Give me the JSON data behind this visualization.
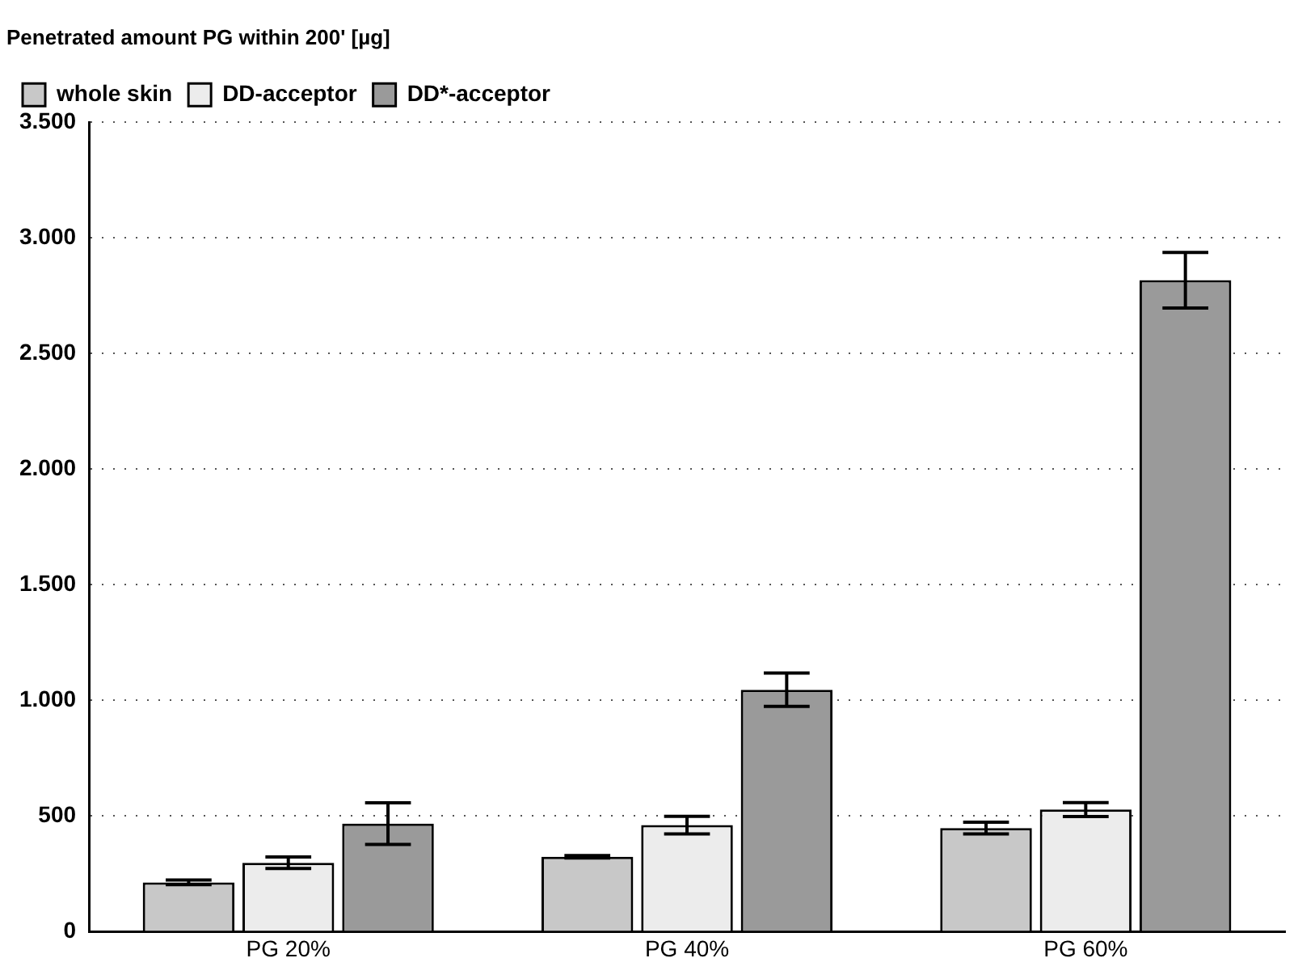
{
  "chart_data": {
    "type": "bar",
    "ylabel": "Penetrated amount PG within 200' [µg]",
    "categories": [
      "PG 20%",
      "PG 40%",
      "PG 60%"
    ],
    "series": [
      {
        "name": "whole skin",
        "color": "#c8c8c8",
        "values": [
          213,
          324,
          448
        ],
        "errors": [
          10,
          5,
          25
        ]
      },
      {
        "name": "DD-acceptor",
        "color": "#ececec",
        "values": [
          298,
          461,
          528
        ],
        "errors": [
          25,
          38,
          30
        ]
      },
      {
        "name": "DD*-acceptor",
        "color": "#9a9a9a",
        "values": [
          467,
          1046,
          2817
        ],
        "errors": [
          90,
          72,
          120
        ]
      }
    ],
    "ylim": [
      0,
      3500
    ],
    "yticks": [
      0,
      500,
      {
        "value": 1000,
        "label": "1.000"
      },
      {
        "value": 1500,
        "label": "1.500"
      },
      {
        "value": 2000,
        "label": "2.000"
      },
      {
        "value": 2500,
        "label": "2.500"
      },
      {
        "value": 3000,
        "label": "3.000"
      },
      {
        "value": 3500,
        "label": "3.500"
      }
    ],
    "grid": "y",
    "legend": "top left"
  }
}
